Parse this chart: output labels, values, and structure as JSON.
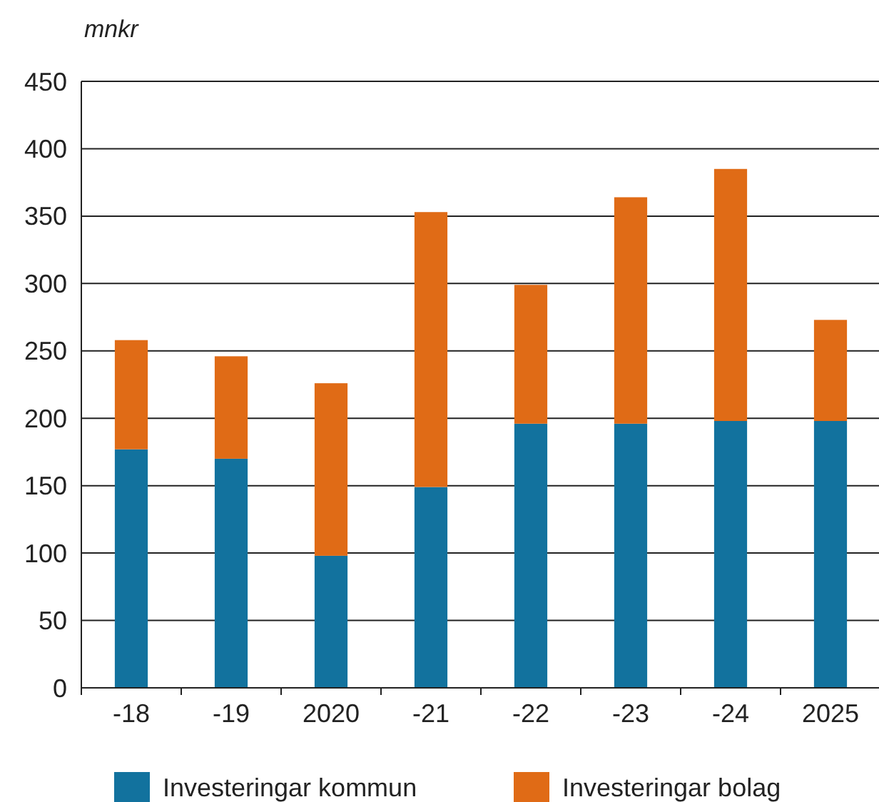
{
  "chart_data": {
    "type": "bar",
    "ylabel": "mnkr",
    "categories": [
      "-18",
      "-19",
      "2020",
      "-21",
      "-22",
      "-23",
      "-24",
      "2025"
    ],
    "stacked": true,
    "series": [
      {
        "name": "Investeringar kommun",
        "color": "#12729e",
        "values": [
          177,
          170,
          98,
          149,
          196,
          196,
          198,
          198
        ]
      },
      {
        "name": "Investeringar bolag",
        "color": "#e06b16",
        "values": [
          81,
          76,
          128,
          204,
          103,
          168,
          187,
          75
        ]
      }
    ],
    "ylim": [
      0,
      450
    ],
    "yticks": [
      0,
      50,
      100,
      150,
      200,
      250,
      300,
      350,
      400,
      450
    ],
    "grid": "y",
    "legend": "bottom"
  }
}
